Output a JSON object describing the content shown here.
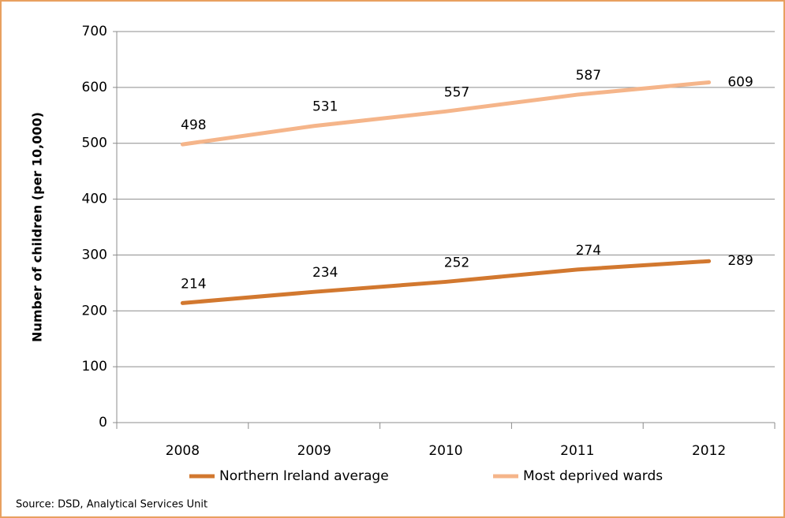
{
  "chart_data": {
    "type": "line",
    "y_label": "Number of children (per 10,000)",
    "categories": [
      "2008",
      "2009",
      "2010",
      "2011",
      "2012"
    ],
    "series": [
      {
        "name": "Northern Ireland average",
        "color": "#d2782f",
        "values": [
          214,
          234,
          252,
          274,
          289
        ]
      },
      {
        "name": "Most deprived wards",
        "color": "#f5b58a",
        "values": [
          498,
          531,
          557,
          587,
          609
        ]
      }
    ],
    "ylim": [
      0,
      700
    ],
    "yticks": [
      0,
      100,
      200,
      300,
      400,
      500,
      600,
      700
    ],
    "grid": true,
    "legend": "bottom",
    "source": "Source: DSD, Analytical Services Unit"
  }
}
